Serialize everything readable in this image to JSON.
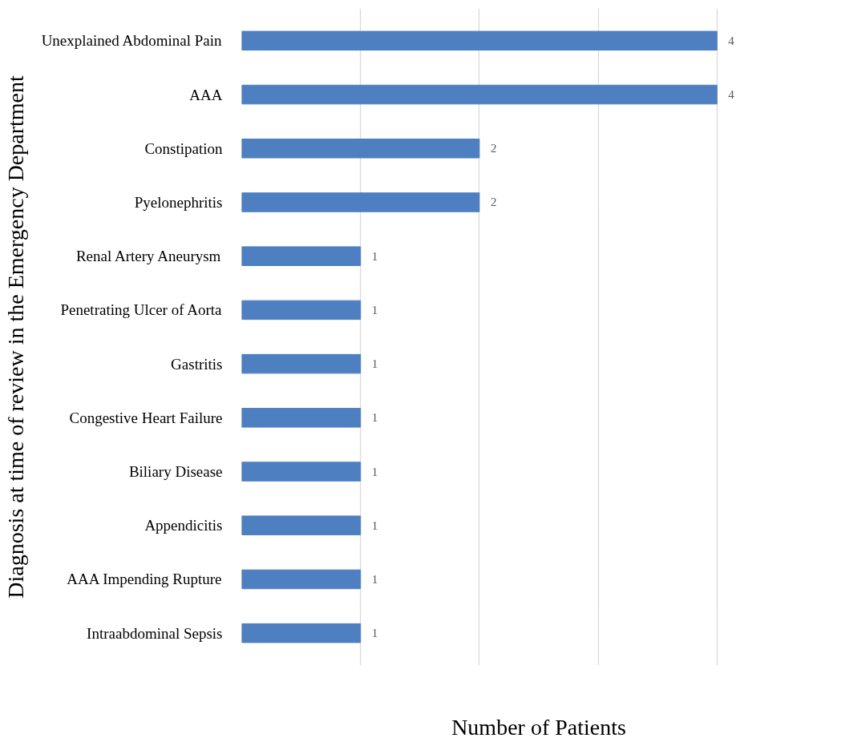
{
  "chart_data": {
    "type": "bar",
    "orientation": "horizontal",
    "ylabel": "Diagnosis at time of review in the Emergency Department",
    "xlabel": "Number of Patients",
    "categories": [
      "Unexplained Abdominal Pain",
      "AAA",
      "Constipation",
      "Pyelonephritis",
      "Renal Artery Aneurysm",
      "Penetrating Ulcer of Aorta",
      "Gastritis",
      "Congestive Heart Failure",
      "Biliary Disease",
      "Appendicitis",
      "AAA Impending Rupture",
      "Intraabdominal Sepsis"
    ],
    "values": [
      4,
      4,
      2,
      2,
      1,
      1,
      1,
      1,
      1,
      1,
      1,
      1
    ],
    "color": "#4e7fc0",
    "data_labels": true,
    "grid": "x",
    "tick_labels": "y"
  }
}
